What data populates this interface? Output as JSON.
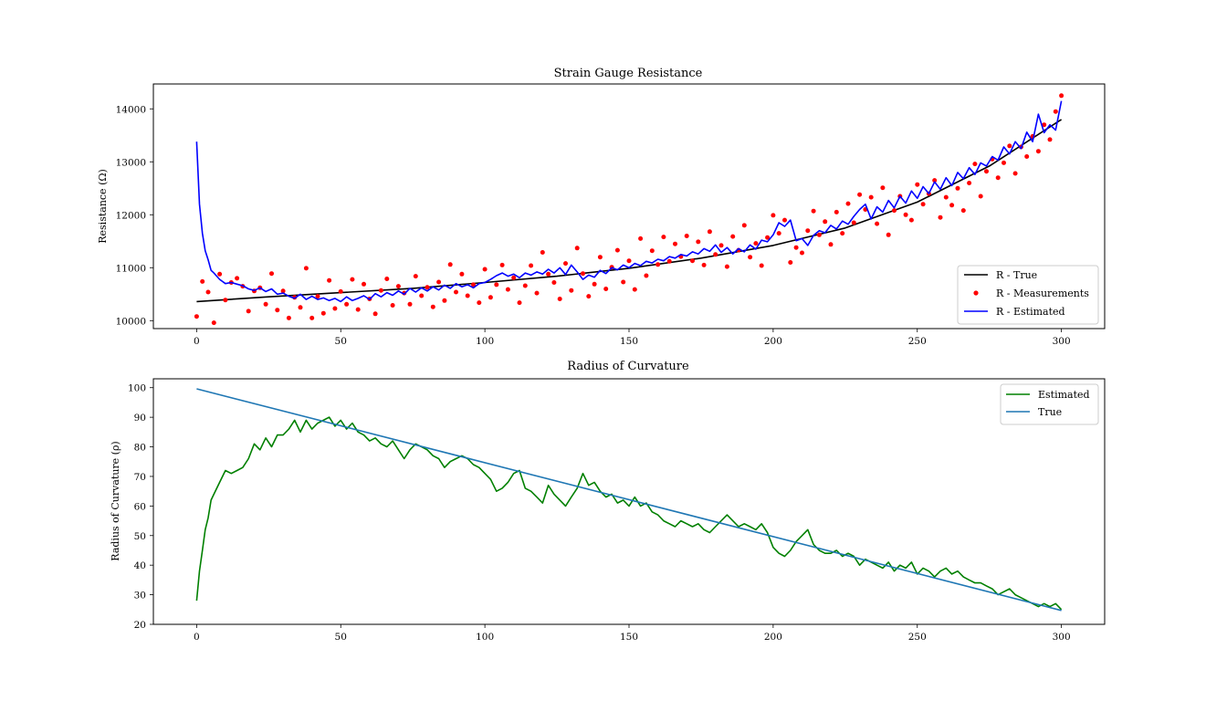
{
  "chart_data": [
    {
      "type": "line",
      "title": "Strain Gauge Resistance",
      "xlabel": "",
      "ylabel": "Resistance (Ω)",
      "xlim": [
        -15,
        315
      ],
      "ylim": [
        9850,
        14470
      ],
      "xticks": [
        0,
        50,
        100,
        150,
        200,
        250,
        300
      ],
      "yticks": [
        10000,
        11000,
        12000,
        13000,
        14000
      ],
      "legend_position": "lower-right",
      "series": [
        {
          "name": "R - True",
          "kind": "line",
          "color": "#000000",
          "x": [
            0,
            25,
            50,
            75,
            100,
            125,
            150,
            175,
            200,
            225,
            250,
            275,
            300
          ],
          "y": [
            10360,
            10450,
            10530,
            10610,
            10720,
            10840,
            10990,
            11180,
            11420,
            11750,
            12240,
            12920,
            13800
          ]
        },
        {
          "name": "R - Measurements",
          "kind": "scatter",
          "color": "#ff0000",
          "x": [
            0,
            2,
            4,
            6,
            8,
            10,
            12,
            14,
            16,
            18,
            20,
            22,
            24,
            26,
            28,
            30,
            32,
            34,
            36,
            38,
            40,
            42,
            44,
            46,
            48,
            50,
            52,
            54,
            56,
            58,
            60,
            62,
            64,
            66,
            68,
            70,
            72,
            74,
            76,
            78,
            80,
            82,
            84,
            86,
            88,
            90,
            92,
            94,
            96,
            98,
            100,
            102,
            104,
            106,
            108,
            110,
            112,
            114,
            116,
            118,
            120,
            122,
            124,
            126,
            128,
            130,
            132,
            134,
            136,
            138,
            140,
            142,
            144,
            146,
            148,
            150,
            152,
            154,
            156,
            158,
            160,
            162,
            164,
            166,
            168,
            170,
            172,
            174,
            176,
            178,
            180,
            182,
            184,
            186,
            188,
            190,
            192,
            194,
            196,
            198,
            200,
            202,
            204,
            206,
            208,
            210,
            212,
            214,
            216,
            218,
            220,
            222,
            224,
            226,
            228,
            230,
            232,
            234,
            236,
            238,
            240,
            242,
            244,
            246,
            248,
            250,
            252,
            254,
            256,
            258,
            260,
            262,
            264,
            266,
            268,
            270,
            272,
            274,
            276,
            278,
            280,
            282,
            284,
            286,
            288,
            290,
            292,
            294,
            296,
            298,
            300
          ],
          "y": [
            10080,
            10740,
            10540,
            9960,
            10880,
            10390,
            10720,
            10800,
            10650,
            10180,
            10560,
            10620,
            10310,
            10890,
            10200,
            10560,
            10050,
            10440,
            10250,
            10990,
            10050,
            10460,
            10140,
            10760,
            10230,
            10550,
            10310,
            10780,
            10210,
            10690,
            10410,
            10130,
            10570,
            10790,
            10290,
            10650,
            10520,
            10310,
            10840,
            10470,
            10630,
            10260,
            10730,
            10380,
            11060,
            10540,
            10880,
            10470,
            10680,
            10340,
            10970,
            10440,
            10680,
            11050,
            10590,
            10810,
            10340,
            10660,
            11040,
            10520,
            11290,
            10880,
            10720,
            10410,
            11080,
            10570,
            11370,
            10890,
            10460,
            10690,
            11200,
            10600,
            11010,
            11330,
            10730,
            11130,
            10590,
            11550,
            10850,
            11320,
            11060,
            11580,
            11120,
            11450,
            11210,
            11600,
            11130,
            11490,
            11050,
            11680,
            11250,
            11420,
            11020,
            11590,
            11330,
            11800,
            11200,
            11460,
            11040,
            11570,
            11990,
            11650,
            11900,
            11100,
            11380,
            11280,
            11700,
            12070,
            11620,
            11870,
            11440,
            12050,
            11650,
            12210,
            11850,
            12380,
            12100,
            12330,
            11830,
            12510,
            11620,
            12080,
            12350,
            12000,
            11900,
            12570,
            12200,
            12400,
            12650,
            11950,
            12330,
            12180,
            12500,
            12080,
            12600,
            12960,
            12350,
            12820,
            13050,
            12700,
            12980,
            13300,
            12780,
            13280,
            13100,
            13480,
            13200,
            13700,
            13420,
            13950,
            14250
          ]
        },
        {
          "name": "R - Estimated",
          "kind": "line",
          "color": "#0000ff",
          "x": [
            0,
            1,
            2,
            3,
            4,
            5,
            6,
            8,
            10,
            12,
            14,
            16,
            18,
            20,
            22,
            24,
            26,
            28,
            30,
            32,
            34,
            36,
            38,
            40,
            42,
            44,
            46,
            48,
            50,
            52,
            54,
            56,
            58,
            60,
            62,
            64,
            66,
            68,
            70,
            72,
            74,
            76,
            78,
            80,
            82,
            84,
            86,
            88,
            90,
            92,
            94,
            96,
            98,
            100,
            102,
            104,
            106,
            108,
            110,
            112,
            114,
            116,
            118,
            120,
            122,
            124,
            126,
            128,
            130,
            132,
            134,
            136,
            138,
            140,
            142,
            144,
            146,
            148,
            150,
            152,
            154,
            156,
            158,
            160,
            162,
            164,
            166,
            168,
            170,
            172,
            174,
            176,
            178,
            180,
            182,
            184,
            186,
            188,
            190,
            192,
            194,
            196,
            198,
            200,
            202,
            204,
            206,
            208,
            210,
            212,
            214,
            216,
            218,
            220,
            222,
            224,
            226,
            228,
            230,
            232,
            234,
            236,
            238,
            240,
            242,
            244,
            246,
            248,
            250,
            252,
            254,
            256,
            258,
            260,
            262,
            264,
            266,
            268,
            270,
            272,
            274,
            276,
            278,
            280,
            282,
            284,
            286,
            288,
            290,
            292,
            294,
            296,
            298,
            300
          ],
          "y": [
            13380,
            12200,
            11650,
            11320,
            11150,
            10950,
            10900,
            10780,
            10700,
            10720,
            10690,
            10660,
            10600,
            10570,
            10620,
            10550,
            10600,
            10500,
            10520,
            10460,
            10420,
            10500,
            10400,
            10460,
            10400,
            10430,
            10380,
            10420,
            10360,
            10450,
            10380,
            10420,
            10470,
            10400,
            10510,
            10450,
            10530,
            10480,
            10560,
            10500,
            10610,
            10540,
            10620,
            10560,
            10640,
            10580,
            10670,
            10610,
            10700,
            10640,
            10680,
            10620,
            10700,
            10720,
            10780,
            10850,
            10900,
            10840,
            10880,
            10810,
            10900,
            10860,
            10920,
            10880,
            10970,
            10900,
            11000,
            10870,
            11050,
            10920,
            10780,
            10860,
            10820,
            10950,
            10890,
            11000,
            10960,
            11050,
            11000,
            11080,
            11040,
            11120,
            11090,
            11160,
            11130,
            11210,
            11180,
            11250,
            11220,
            11300,
            11260,
            11360,
            11310,
            11430,
            11290,
            11380,
            11260,
            11360,
            11300,
            11430,
            11350,
            11520,
            11490,
            11620,
            11850,
            11780,
            11900,
            11510,
            11550,
            11420,
            11610,
            11700,
            11660,
            11800,
            11730,
            11880,
            11820,
            11970,
            12100,
            12200,
            11920,
            12150,
            12050,
            12270,
            12130,
            12350,
            12220,
            12450,
            12310,
            12530,
            12400,
            12620,
            12480,
            12700,
            12550,
            12800,
            12680,
            12890,
            12760,
            12980,
            12920,
            13100,
            13030,
            13280,
            13150,
            13380,
            13250,
            13560,
            13380,
            13900,
            13550,
            13700,
            13600,
            14150
          ]
        }
      ]
    },
    {
      "type": "line",
      "title": "Radius of Curvature",
      "xlabel": "",
      "ylabel": "Radius of Curvature (ρ)",
      "xlim": [
        -15,
        315
      ],
      "ylim": [
        20,
        103
      ],
      "xticks": [
        0,
        50,
        100,
        150,
        200,
        250,
        300
      ],
      "yticks": [
        20,
        30,
        40,
        50,
        60,
        70,
        80,
        90,
        100
      ],
      "legend_position": "upper-right",
      "series": [
        {
          "name": "Estimated",
          "kind": "line",
          "color": "#008000",
          "x": [
            0,
            1,
            2,
            3,
            4,
            5,
            6,
            8,
            10,
            12,
            14,
            16,
            18,
            20,
            22,
            24,
            26,
            28,
            30,
            32,
            34,
            36,
            38,
            40,
            42,
            44,
            46,
            48,
            50,
            52,
            54,
            56,
            58,
            60,
            62,
            64,
            66,
            68,
            70,
            72,
            74,
            76,
            78,
            80,
            82,
            84,
            86,
            88,
            90,
            92,
            94,
            96,
            98,
            100,
            102,
            104,
            106,
            108,
            110,
            112,
            114,
            116,
            118,
            120,
            122,
            124,
            126,
            128,
            130,
            132,
            134,
            136,
            138,
            140,
            142,
            144,
            146,
            148,
            150,
            152,
            154,
            156,
            158,
            160,
            162,
            164,
            166,
            168,
            170,
            172,
            174,
            176,
            178,
            180,
            182,
            184,
            186,
            188,
            190,
            192,
            194,
            196,
            198,
            200,
            202,
            204,
            206,
            208,
            210,
            212,
            214,
            216,
            218,
            220,
            222,
            224,
            226,
            228,
            230,
            232,
            234,
            236,
            238,
            240,
            242,
            244,
            246,
            248,
            250,
            252,
            254,
            256,
            258,
            260,
            262,
            264,
            266,
            268,
            270,
            272,
            274,
            276,
            278,
            280,
            282,
            284,
            286,
            288,
            290,
            292,
            294,
            296,
            298,
            300
          ],
          "y": [
            28,
            38,
            45,
            52,
            56,
            62,
            64,
            68,
            72,
            71,
            72,
            73,
            76,
            81,
            79,
            83,
            80,
            84,
            84,
            86,
            89,
            85,
            89,
            86,
            88,
            89,
            90,
            87,
            89,
            86,
            88,
            85,
            84,
            82,
            83,
            81,
            80,
            82,
            79,
            76,
            79,
            81,
            80,
            79,
            77,
            76,
            73,
            75,
            76,
            77,
            76,
            74,
            73,
            71,
            69,
            65,
            66,
            68,
            71,
            72,
            66,
            65,
            63,
            61,
            67,
            64,
            62,
            60,
            63,
            66,
            71,
            67,
            68,
            65,
            63,
            64,
            61,
            62,
            60,
            63,
            60,
            61,
            58,
            57,
            55,
            54,
            53,
            55,
            54,
            53,
            54,
            52,
            51,
            53,
            55,
            57,
            55,
            53,
            54,
            53,
            52,
            54,
            51,
            46,
            44,
            43,
            45,
            48,
            50,
            52,
            47,
            45,
            44,
            44,
            45,
            43,
            44,
            43,
            40,
            42,
            41,
            40,
            39,
            41,
            38,
            40,
            39,
            41,
            37,
            39,
            38,
            36,
            38,
            39,
            37,
            38,
            36,
            35,
            34,
            34,
            33,
            32,
            30,
            31,
            32,
            30,
            29,
            28,
            27,
            26,
            27,
            26,
            27,
            25
          ]
        },
        {
          "name": "True",
          "kind": "line",
          "color": "#1f77b4",
          "x": [
            0,
            300
          ],
          "y": [
            99.6,
            24.7
          ]
        }
      ]
    }
  ]
}
